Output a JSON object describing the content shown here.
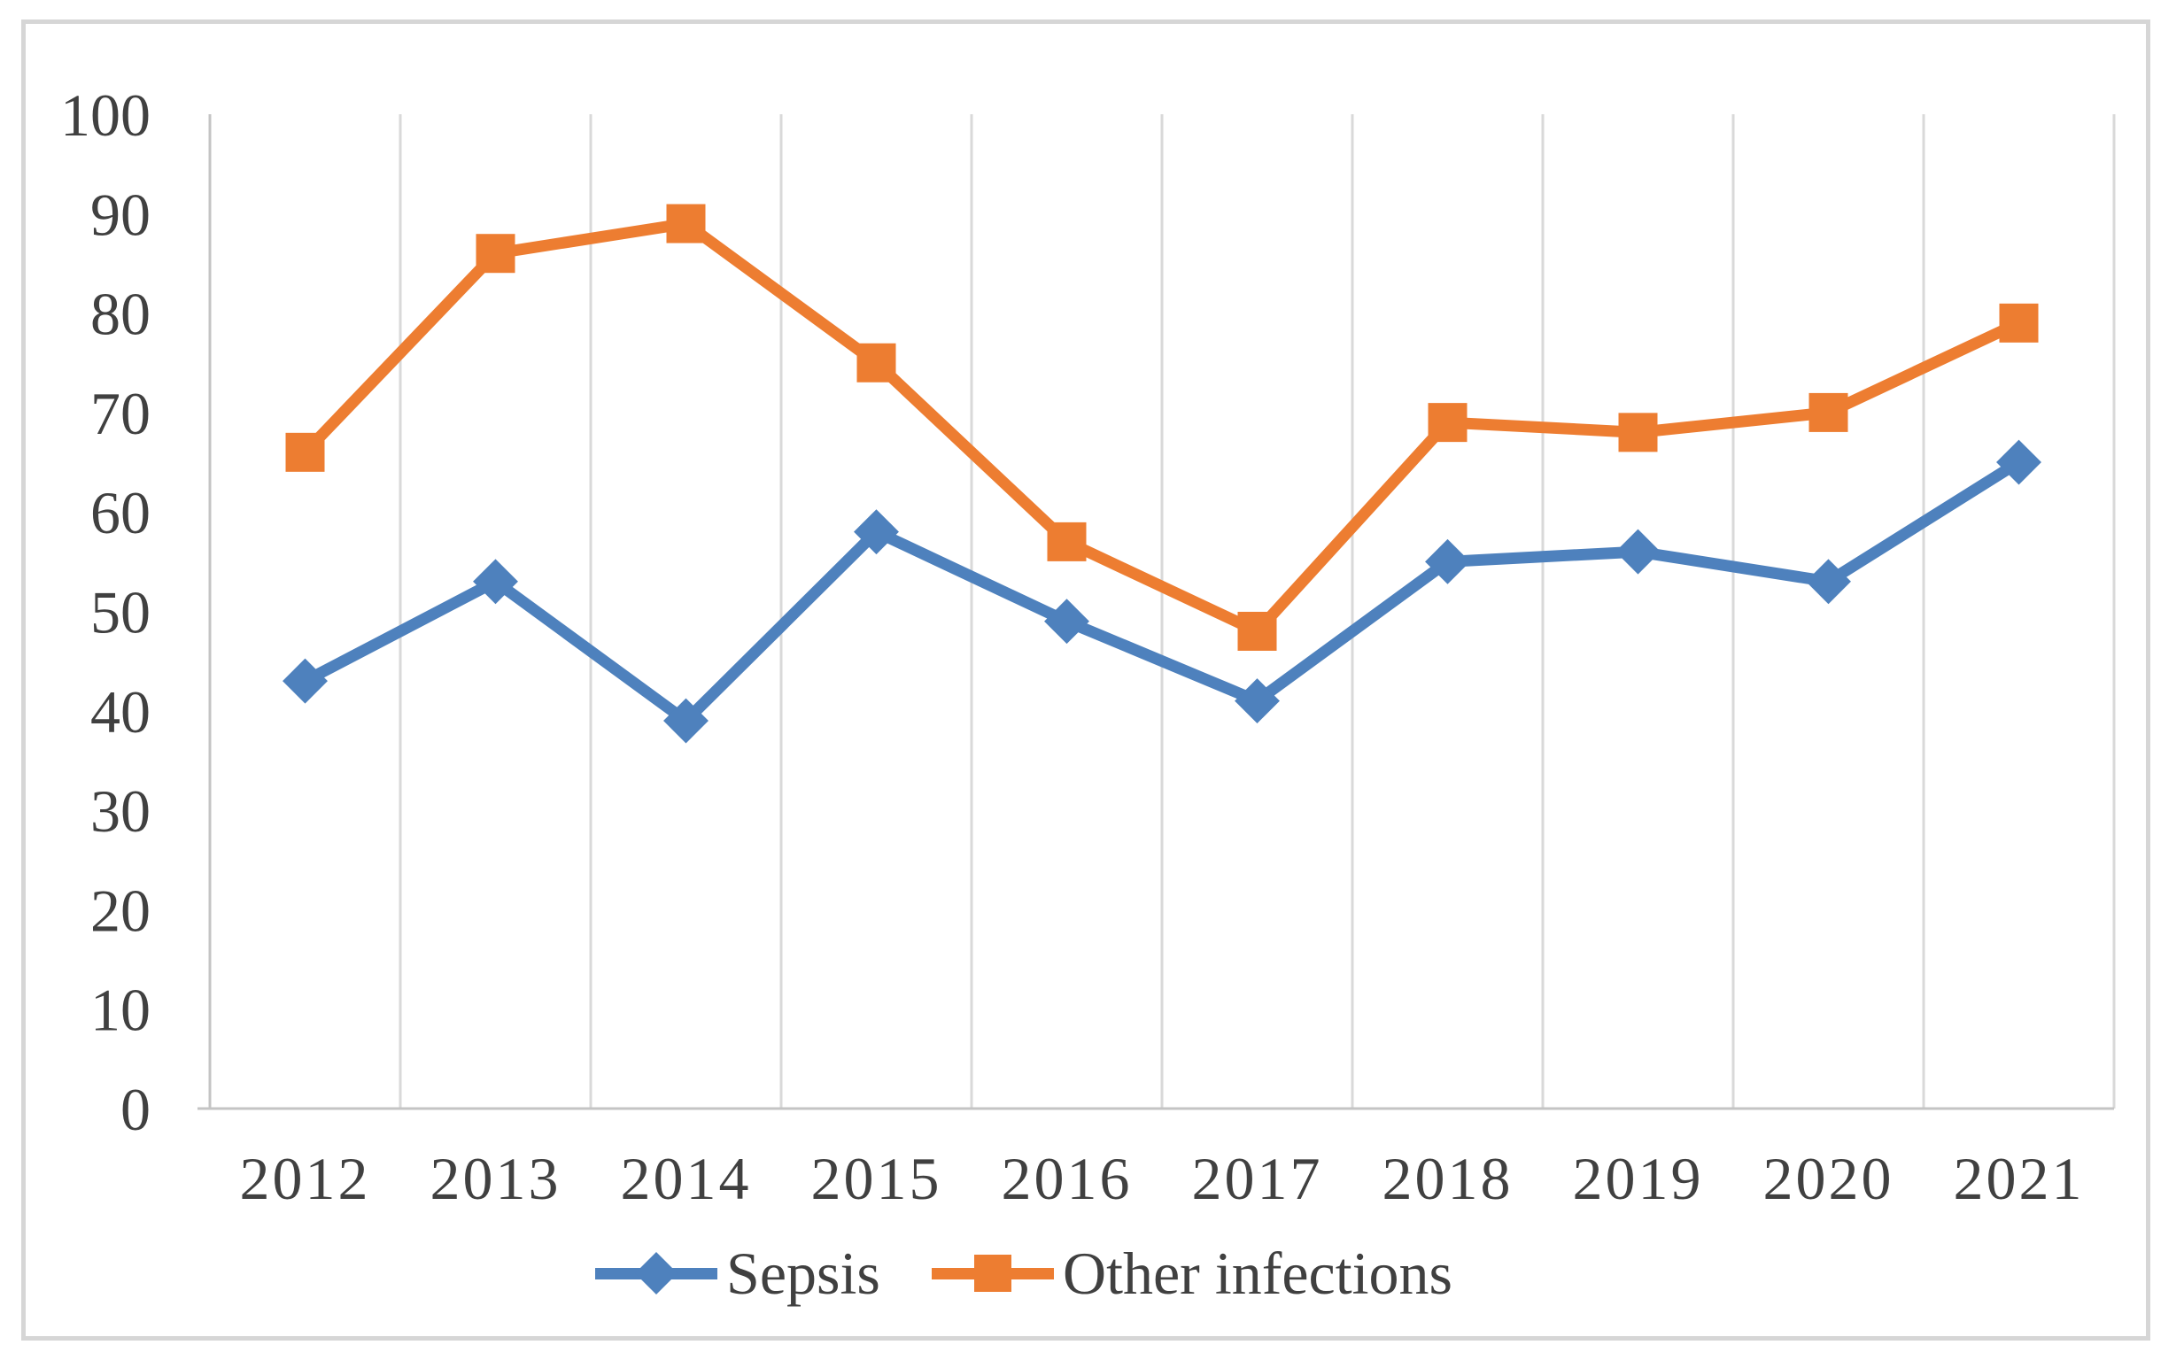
{
  "figure": {
    "background": "#ffffff",
    "border_color": "#d6d6d6"
  },
  "chart_data": {
    "type": "line",
    "title": "",
    "xlabel": "",
    "ylabel": "",
    "categories": [
      "2012",
      "2013",
      "2014",
      "2015",
      "2016",
      "2017",
      "2018",
      "2019",
      "2020",
      "2021"
    ],
    "series": [
      {
        "name": "Sepsis",
        "marker": "diamond",
        "color": "#4E81BD",
        "values": [
          43,
          53,
          39,
          58,
          49,
          41,
          55,
          56,
          53,
          65
        ]
      },
      {
        "name": "Other infections",
        "marker": "square",
        "color": "#ED7D31",
        "values": [
          66,
          86,
          89,
          75,
          57,
          48,
          69,
          68,
          70,
          79
        ]
      }
    ],
    "ylim": [
      0,
      100
    ],
    "yticks": [
      0,
      10,
      20,
      30,
      40,
      50,
      60,
      70,
      80,
      90,
      100
    ],
    "grid": "vertical-only",
    "legend_position": "bottom",
    "colors": {
      "grid": "#d9d9d9",
      "axis": "#c4c4c4",
      "tick_text": "#404040"
    }
  }
}
